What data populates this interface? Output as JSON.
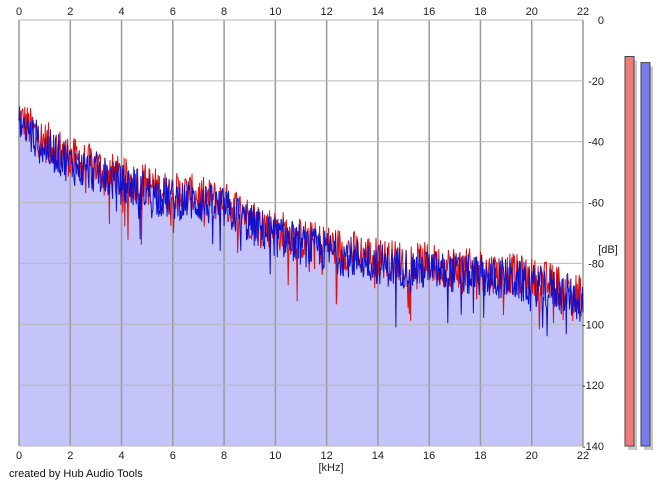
{
  "chart_data": {
    "type": "area",
    "xlabel": "[kHz]",
    "ylabel": "[dB]",
    "xlim": [
      0,
      22
    ],
    "ylim": [
      -140,
      0
    ],
    "x_ticks": [
      0,
      2,
      4,
      6,
      8,
      10,
      12,
      14,
      16,
      18,
      20,
      22
    ],
    "y_ticks": [
      0,
      -20,
      -40,
      -60,
      -80,
      -100,
      -120,
      -140
    ],
    "y_tick_labels": [
      "0",
      "-20",
      "-40",
      "-60",
      "-80",
      "-100",
      "-120",
      "-140"
    ],
    "grid": true,
    "series": [
      {
        "color": "#dd1111",
        "x": [
          0,
          0.5,
          1,
          1.5,
          2,
          2.5,
          3,
          3.5,
          4,
          4.5,
          5,
          5.5,
          6,
          6.5,
          7,
          7.5,
          8,
          8.5,
          9,
          9.5,
          10,
          10.5,
          11,
          11.5,
          12,
          12.5,
          13,
          13.5,
          14,
          14.5,
          15,
          15.5,
          16,
          16.5,
          17,
          17.5,
          18,
          18.5,
          19,
          19.5,
          20,
          20.5,
          21,
          21.5,
          22
        ],
        "values": [
          -32,
          -36,
          -40,
          -42,
          -45,
          -47,
          -48,
          -50,
          -52,
          -53,
          -54,
          -56,
          -57,
          -57,
          -58,
          -59,
          -60,
          -62,
          -65,
          -67,
          -69,
          -70,
          -72,
          -73,
          -74,
          -75,
          -76,
          -77,
          -78,
          -79,
          -79,
          -80,
          -80,
          -81,
          -81,
          -82,
          -82,
          -83,
          -83,
          -84,
          -85,
          -86,
          -87,
          -89,
          -91
        ]
      },
      {
        "color": "#1111cc",
        "x": [
          0,
          0.5,
          1,
          1.5,
          2,
          2.5,
          3,
          3.5,
          4,
          4.5,
          5,
          5.5,
          6,
          6.5,
          7,
          7.5,
          8,
          8.5,
          9,
          9.5,
          10,
          10.5,
          11,
          11.5,
          12,
          12.5,
          13,
          13.5,
          14,
          14.5,
          15,
          15.5,
          16,
          16.5,
          17,
          17.5,
          18,
          18.5,
          19,
          19.5,
          20,
          20.5,
          21,
          21.5,
          22
        ],
        "values": [
          -34,
          -38,
          -42,
          -44,
          -47,
          -49,
          -50,
          -52,
          -54,
          -55,
          -56,
          -58,
          -59,
          -59,
          -60,
          -61,
          -62,
          -64,
          -67,
          -69,
          -71,
          -72,
          -74,
          -75,
          -76,
          -77,
          -78,
          -79,
          -80,
          -81,
          -81,
          -82,
          -82,
          -83,
          -83,
          -84,
          -84,
          -85,
          -85,
          -86,
          -87,
          -88,
          -89,
          -91,
          -93
        ]
      }
    ],
    "fill_color": "#c4c4fa",
    "meters": [
      {
        "color": "#f07a7a",
        "level_db": -12
      },
      {
        "color": "#7a7af0",
        "level_db": -14
      }
    ]
  },
  "credit": "created by Hub Audio Tools"
}
